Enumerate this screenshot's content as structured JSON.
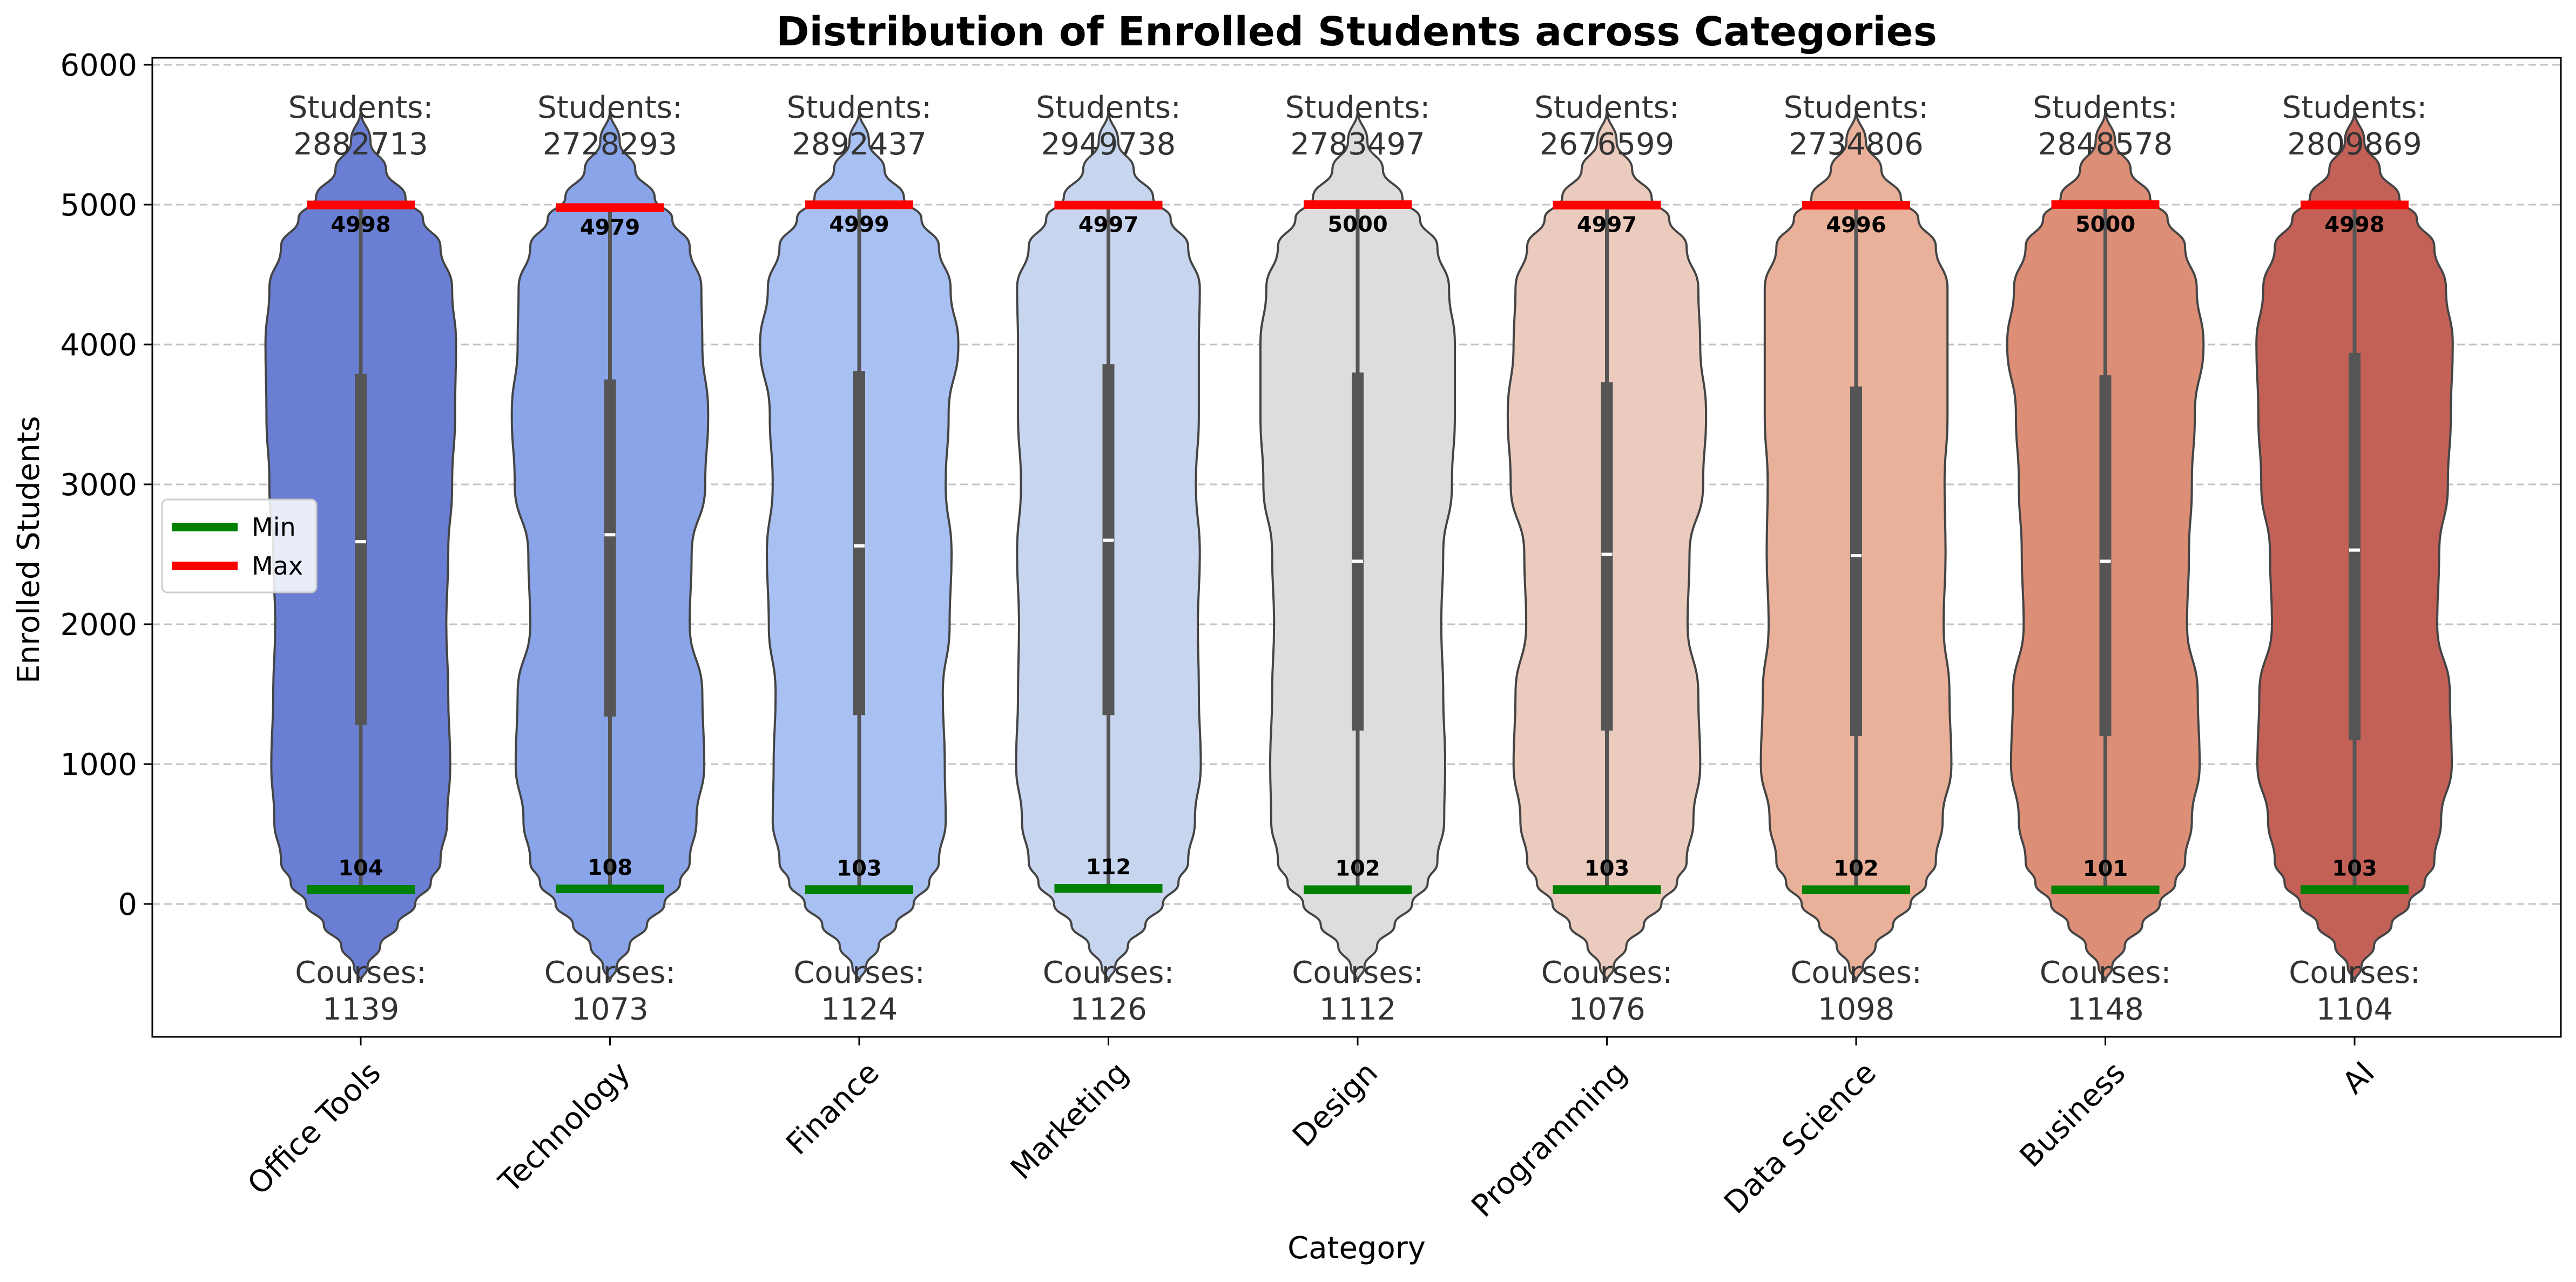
{
  "chart_data": {
    "type": "violin",
    "title": "Distribution of Enrolled Students across Categories",
    "xlabel": "Category",
    "ylabel": "Enrolled Students",
    "ylim": [
      -950,
      6050
    ],
    "yticks": [
      0,
      1000,
      2000,
      3000,
      4000,
      5000,
      6000
    ],
    "grid": "horizontal dashed",
    "legend": {
      "position": "center-left",
      "entries": [
        {
          "label": "Min",
          "color": "#008000"
        },
        {
          "label": "Max",
          "color": "#ff0000"
        }
      ]
    },
    "students_prefix": "Students:",
    "courses_prefix": "Courses:",
    "categories": [
      "Office Tools",
      "Technology",
      "Finance",
      "Marketing",
      "Design",
      "Programming",
      "Data Science",
      "Business",
      "AI"
    ],
    "colors": [
      "#6a7fd4",
      "#89a4e8",
      "#a9c0f3",
      "#c8d5ef",
      "#dddddd",
      "#ebcbbd",
      "#e9b09a",
      "#dc8e77",
      "#c46157"
    ],
    "students_total": [
      2882713,
      2728293,
      2892437,
      2949738,
      2783497,
      2676599,
      2734806,
      2848578,
      2809869
    ],
    "courses": [
      1139,
      1073,
      1124,
      1126,
      1112,
      1076,
      1098,
      1148,
      1104
    ],
    "min": [
      104,
      108,
      103,
      112,
      102,
      103,
      102,
      101,
      103
    ],
    "max": [
      4998,
      4979,
      4999,
      4997,
      5000,
      4997,
      4996,
      5000,
      4998
    ],
    "q1": [
      1280,
      1340,
      1350,
      1350,
      1240,
      1240,
      1200,
      1200,
      1170
    ],
    "median": [
      2590,
      2640,
      2560,
      2600,
      2450,
      2500,
      2490,
      2450,
      2530
    ],
    "q3": [
      3790,
      3750,
      3810,
      3860,
      3800,
      3730,
      3700,
      3780,
      3940
    ]
  }
}
